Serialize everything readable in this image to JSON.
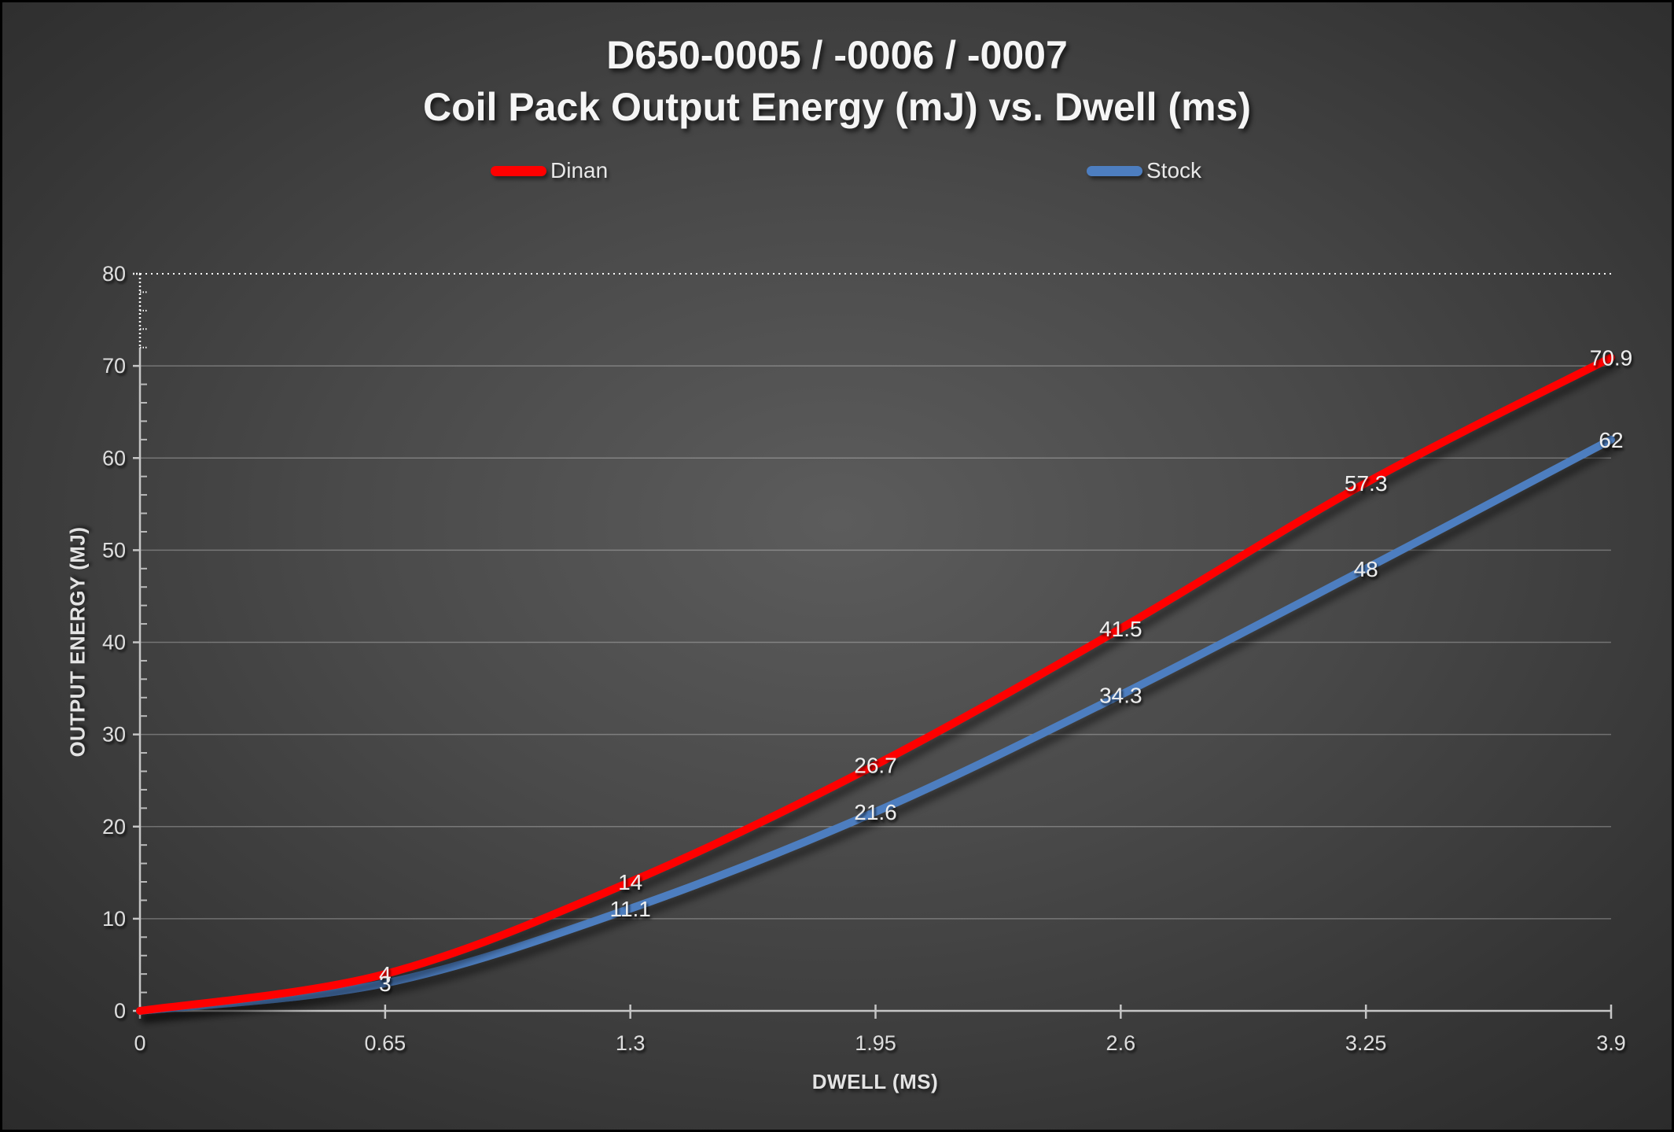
{
  "title": {
    "line1": "D650-0005 / -0006 / -0007",
    "line2": "Coil Pack Output Energy (mJ) vs. Dwell (ms)"
  },
  "colors": {
    "background_center": "#5c5c5c",
    "background_edge": "#262626",
    "dinan_red": "#FF0000",
    "stock_blue": "#4D7EC0",
    "axis_line": "#C6C6C6",
    "gridline": "rgba(255,255,255,0.28)",
    "tick_label": "#DCDCDC",
    "data_label": "#EDEDED"
  },
  "chart_data": {
    "type": "line",
    "title": "D650-0005 / -0006 / -0007",
    "subtitle": "Coil Pack Output Energy (mJ) vs. Dwell (ms)",
    "xlabel": "DWELL (MS)",
    "ylabel": "OUTPUT ENERGY (MJ)",
    "xlim": [
      0,
      3.9
    ],
    "ylim": [
      0,
      80
    ],
    "x": [
      0,
      0.65,
      1.3,
      1.95,
      2.6,
      3.25,
      3.9
    ],
    "x_tick_labels": [
      "0",
      "0.65",
      "1.3",
      "1.95",
      "2.6",
      "3.25",
      "3.9"
    ],
    "y_ticks": [
      0,
      10,
      20,
      30,
      40,
      50,
      60,
      70,
      80
    ],
    "y_tick_labels": [
      "0",
      "10",
      "20",
      "30",
      "40",
      "50",
      "60",
      "70",
      "80"
    ],
    "y_minor_unit": 2,
    "grid": "horizontal-major",
    "top_boundary_style": "dotted",
    "legend_position": "top",
    "line_style": "smooth",
    "series": [
      {
        "name": "Dinan",
        "color": "#FF0000",
        "values": [
          0,
          4,
          14,
          26.7,
          41.5,
          57.3,
          70.9
        ],
        "point_labels": [
          "",
          "4",
          "14",
          "26.7",
          "41.5",
          "57.3",
          "70.9"
        ]
      },
      {
        "name": "Stock",
        "color": "#4D7EC0",
        "values": [
          0,
          3,
          11.1,
          21.6,
          34.3,
          48,
          62
        ],
        "point_labels": [
          "",
          "3",
          "11.1",
          "21.6",
          "34.3",
          "48",
          "62"
        ]
      }
    ]
  }
}
